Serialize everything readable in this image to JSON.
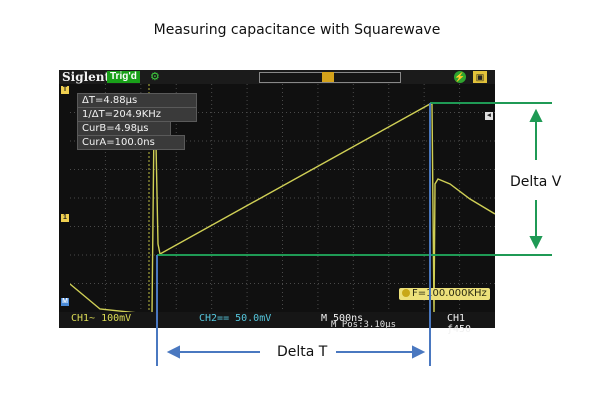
{
  "title": "Measuring capacitance with Squarewave",
  "scope": {
    "brand": "Siglent",
    "trigger_status": "Trig'd",
    "readouts": {
      "delta_t": "ΔT=4.88μs",
      "inv_delta_t": "1/ΔT=204.9KHz",
      "cur_b": "CurB=4.98μs",
      "cur_a": "CurA=100.0ns"
    },
    "frequency": "F=100.000KHz",
    "bottom": {
      "ch1": "CH1~ 100mV",
      "ch2": "CH2== 50.0mV",
      "timebase": "M 500ns",
      "mpos": "M Pos:3.10μs",
      "trigger": "CH1 ƒ450"
    },
    "markers": {
      "top": "T",
      "ch1": "1",
      "bottom": "M"
    },
    "colors": {
      "trace": "#d3d35a",
      "grid": "#5a5a5a",
      "cursor": "#c8a820"
    }
  },
  "annotations": {
    "delta_v": "Delta V",
    "delta_t": "Delta T",
    "colors": {
      "horizontal_lines": "#1f9a55",
      "vertical_lines": "#4a78c0",
      "arrows": "#1f9a55",
      "t_arrows": "#4a78c0"
    }
  }
}
